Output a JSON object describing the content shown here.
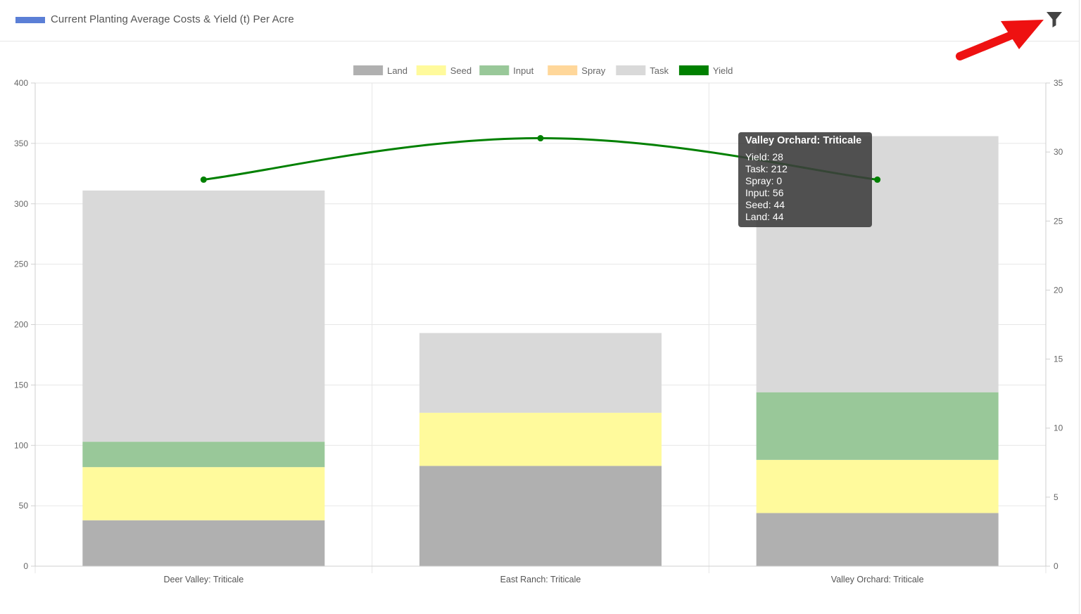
{
  "header": {
    "title": "Current Planting Average Costs & Yield (t) Per Acre",
    "swatch_color": "#5b7fd6",
    "filter_icon": "filter-icon",
    "annotation": "red arrow pointing to filter icon"
  },
  "chart_data": {
    "type": "bar",
    "stacked": true,
    "categories": [
      "Deer Valley: Triticale",
      "East Ranch: Triticale",
      "Valley Orchard: Triticale"
    ],
    "series": [
      {
        "name": "Land",
        "type": "bar",
        "axis": "left",
        "color": "#b0b0b0",
        "values": [
          38,
          83,
          44
        ]
      },
      {
        "name": "Seed",
        "type": "bar",
        "axis": "left",
        "color": "#fffa9c",
        "values": [
          44,
          44,
          44
        ]
      },
      {
        "name": "Input",
        "type": "bar",
        "axis": "left",
        "color": "#99c899",
        "values": [
          21,
          0,
          56
        ]
      },
      {
        "name": "Spray",
        "type": "bar",
        "axis": "left",
        "color": "#ffd79a",
        "values": [
          0,
          0,
          0
        ]
      },
      {
        "name": "Task",
        "type": "bar",
        "axis": "left",
        "color": "#d9d9d9",
        "values": [
          208,
          66,
          212
        ]
      },
      {
        "name": "Yield",
        "type": "line",
        "axis": "right",
        "color": "#008000",
        "values": [
          28,
          31,
          28
        ]
      }
    ],
    "y_left": {
      "min": 0,
      "max": 400,
      "ticks": [
        0,
        50,
        100,
        150,
        200,
        250,
        300,
        350,
        400
      ]
    },
    "y_right": {
      "min": 0,
      "max": 35,
      "ticks": [
        0,
        5,
        10,
        15,
        20,
        25,
        30,
        35
      ]
    },
    "legend_position": "top-center",
    "grid": true
  },
  "tooltip": {
    "title": "Valley Orchard: Triticale",
    "lines": [
      "Yield: 28",
      "Task: 212",
      "Spray: 0",
      "Input: 56",
      "Seed: 44",
      "Land: 44"
    ]
  }
}
